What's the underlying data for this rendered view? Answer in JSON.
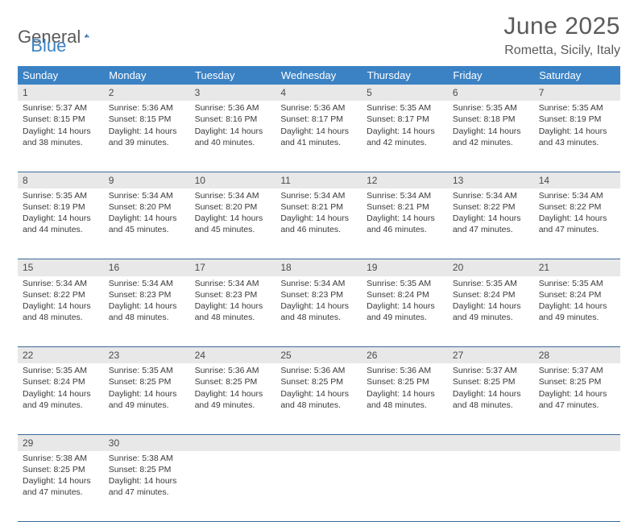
{
  "logo": {
    "text1": "General",
    "text2": "Blue"
  },
  "title": "June 2025",
  "location": "Rometta, Sicily, Italy",
  "colors": {
    "header_bg": "#3b82c4",
    "header_text": "#ffffff",
    "daynum_bg": "#e8e8e8",
    "border": "#3b6a9a",
    "body_text": "#3a3a3a",
    "title_text": "#5a5a5a"
  },
  "weekdays": [
    "Sunday",
    "Monday",
    "Tuesday",
    "Wednesday",
    "Thursday",
    "Friday",
    "Saturday"
  ],
  "weeks": [
    [
      {
        "n": "1",
        "sr": "5:37 AM",
        "ss": "8:15 PM",
        "dl": "14 hours and 38 minutes."
      },
      {
        "n": "2",
        "sr": "5:36 AM",
        "ss": "8:15 PM",
        "dl": "14 hours and 39 minutes."
      },
      {
        "n": "3",
        "sr": "5:36 AM",
        "ss": "8:16 PM",
        "dl": "14 hours and 40 minutes."
      },
      {
        "n": "4",
        "sr": "5:36 AM",
        "ss": "8:17 PM",
        "dl": "14 hours and 41 minutes."
      },
      {
        "n": "5",
        "sr": "5:35 AM",
        "ss": "8:17 PM",
        "dl": "14 hours and 42 minutes."
      },
      {
        "n": "6",
        "sr": "5:35 AM",
        "ss": "8:18 PM",
        "dl": "14 hours and 42 minutes."
      },
      {
        "n": "7",
        "sr": "5:35 AM",
        "ss": "8:19 PM",
        "dl": "14 hours and 43 minutes."
      }
    ],
    [
      {
        "n": "8",
        "sr": "5:35 AM",
        "ss": "8:19 PM",
        "dl": "14 hours and 44 minutes."
      },
      {
        "n": "9",
        "sr": "5:34 AM",
        "ss": "8:20 PM",
        "dl": "14 hours and 45 minutes."
      },
      {
        "n": "10",
        "sr": "5:34 AM",
        "ss": "8:20 PM",
        "dl": "14 hours and 45 minutes."
      },
      {
        "n": "11",
        "sr": "5:34 AM",
        "ss": "8:21 PM",
        "dl": "14 hours and 46 minutes."
      },
      {
        "n": "12",
        "sr": "5:34 AM",
        "ss": "8:21 PM",
        "dl": "14 hours and 46 minutes."
      },
      {
        "n": "13",
        "sr": "5:34 AM",
        "ss": "8:22 PM",
        "dl": "14 hours and 47 minutes."
      },
      {
        "n": "14",
        "sr": "5:34 AM",
        "ss": "8:22 PM",
        "dl": "14 hours and 47 minutes."
      }
    ],
    [
      {
        "n": "15",
        "sr": "5:34 AM",
        "ss": "8:22 PM",
        "dl": "14 hours and 48 minutes."
      },
      {
        "n": "16",
        "sr": "5:34 AM",
        "ss": "8:23 PM",
        "dl": "14 hours and 48 minutes."
      },
      {
        "n": "17",
        "sr": "5:34 AM",
        "ss": "8:23 PM",
        "dl": "14 hours and 48 minutes."
      },
      {
        "n": "18",
        "sr": "5:34 AM",
        "ss": "8:23 PM",
        "dl": "14 hours and 48 minutes."
      },
      {
        "n": "19",
        "sr": "5:35 AM",
        "ss": "8:24 PM",
        "dl": "14 hours and 49 minutes."
      },
      {
        "n": "20",
        "sr": "5:35 AM",
        "ss": "8:24 PM",
        "dl": "14 hours and 49 minutes."
      },
      {
        "n": "21",
        "sr": "5:35 AM",
        "ss": "8:24 PM",
        "dl": "14 hours and 49 minutes."
      }
    ],
    [
      {
        "n": "22",
        "sr": "5:35 AM",
        "ss": "8:24 PM",
        "dl": "14 hours and 49 minutes."
      },
      {
        "n": "23",
        "sr": "5:35 AM",
        "ss": "8:25 PM",
        "dl": "14 hours and 49 minutes."
      },
      {
        "n": "24",
        "sr": "5:36 AM",
        "ss": "8:25 PM",
        "dl": "14 hours and 49 minutes."
      },
      {
        "n": "25",
        "sr": "5:36 AM",
        "ss": "8:25 PM",
        "dl": "14 hours and 48 minutes."
      },
      {
        "n": "26",
        "sr": "5:36 AM",
        "ss": "8:25 PM",
        "dl": "14 hours and 48 minutes."
      },
      {
        "n": "27",
        "sr": "5:37 AM",
        "ss": "8:25 PM",
        "dl": "14 hours and 48 minutes."
      },
      {
        "n": "28",
        "sr": "5:37 AM",
        "ss": "8:25 PM",
        "dl": "14 hours and 47 minutes."
      }
    ],
    [
      {
        "n": "29",
        "sr": "5:38 AM",
        "ss": "8:25 PM",
        "dl": "14 hours and 47 minutes."
      },
      {
        "n": "30",
        "sr": "5:38 AM",
        "ss": "8:25 PM",
        "dl": "14 hours and 47 minutes."
      },
      null,
      null,
      null,
      null,
      null
    ]
  ],
  "labels": {
    "sunrise": "Sunrise:",
    "sunset": "Sunset:",
    "daylight": "Daylight:"
  }
}
